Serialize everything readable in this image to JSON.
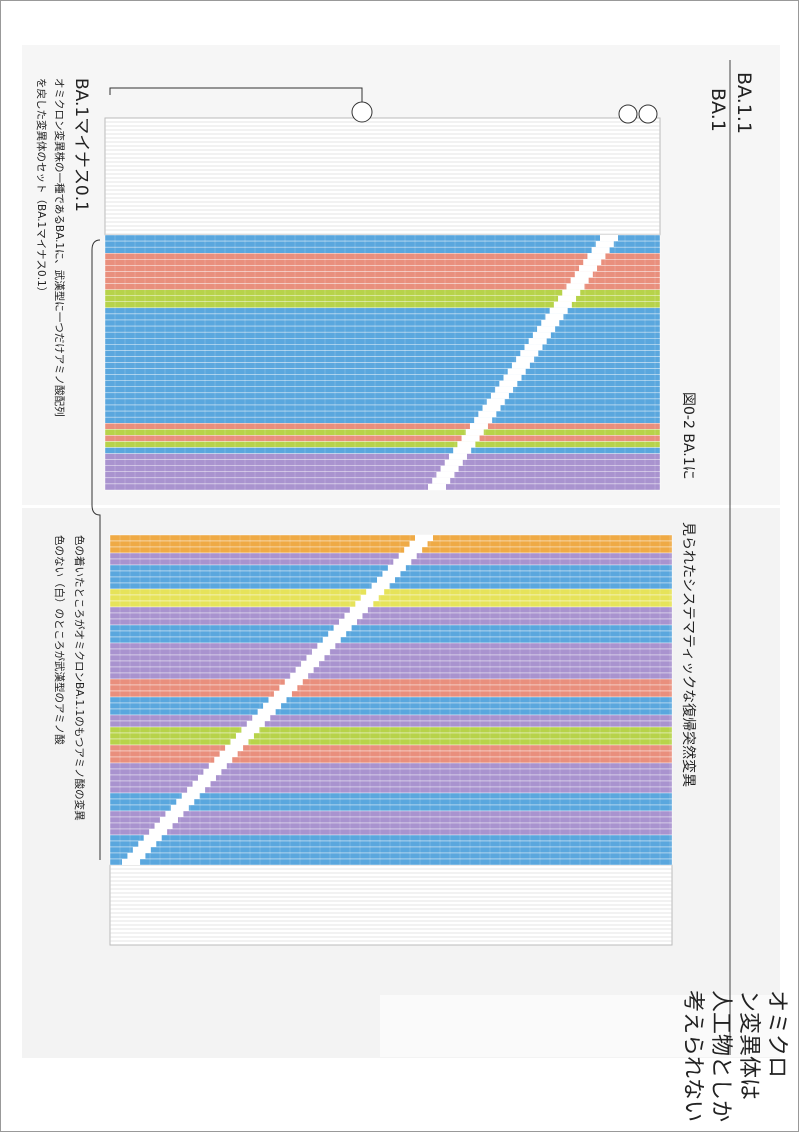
{
  "labels": {
    "ba11": "BA.1.1",
    "ba1": "BA.1",
    "minus": "BA.1マイナス0.1"
  },
  "caption_top": [
    "オミクロン変異株の一種であるBA.1に、武漢型に一つだけアミノ酸配列",
    "を戻した変異体のセット（BA.1マイナス0.1）"
  ],
  "figure_title": "図0-2 BA.1に",
  "figure_title_cont": "見られたシステマティックな復帰突然変異",
  "legend": [
    "色の着いたところがオミクロンBA.1.1のもつアミノ酸の変異",
    "色のない（白）のところが武漢型のアミノ酸"
  ],
  "headline": [
    "オミクロ",
    "ン変異体は",
    "人工物としか",
    "考えられない"
  ]
}
